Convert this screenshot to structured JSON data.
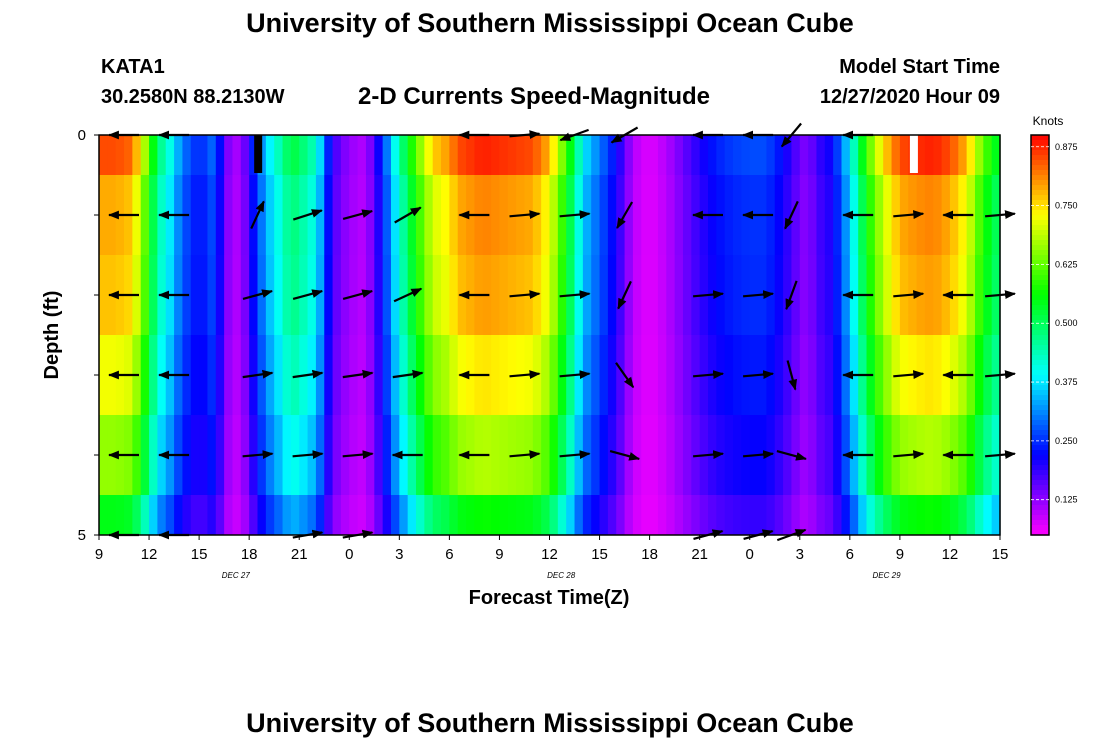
{
  "header": {
    "title": "University of Southern Mississippi Ocean Cube",
    "station": "KATA1",
    "coords": "30.2580N 88.2130W",
    "subtitle": "2-D Currents Speed-Magnitude",
    "model_start_label": "Model Start Time",
    "model_start_value": "12/27/2020 Hour 09"
  },
  "footer": {
    "title": "University of Southern Mississippi Ocean Cube"
  },
  "chart_data": {
    "type": "heatmap",
    "title": "2-D Currents Speed-Magnitude",
    "xlabel": "Forecast Time(Z)",
    "ylabel": "Depth (ft)",
    "x_ticks": [
      "9",
      "12",
      "15",
      "18",
      "21",
      "0",
      "3",
      "6",
      "9",
      "12",
      "15",
      "18",
      "21",
      "0",
      "3",
      "6",
      "9",
      "12",
      "15"
    ],
    "x_hours_range": [
      0,
      54
    ],
    "y_ticks": [
      "0",
      "",
      "",
      "",
      "",
      "5"
    ],
    "ylim": [
      0,
      5
    ],
    "date_labels": [
      {
        "text": "DEC 27",
        "hour": 7
      },
      {
        "text": "DEC 28",
        "hour": 26.5
      },
      {
        "text": "DEC 29",
        "hour": 46
      }
    ],
    "colorbar": {
      "label": "Knots",
      "range": [
        0.05,
        0.9
      ],
      "ticks": [
        "0.875",
        "0.750",
        "0.625",
        "0.500",
        "0.375",
        "0.250",
        "0.125"
      ],
      "tick_values": [
        0.875,
        0.75,
        0.625,
        0.5,
        0.375,
        0.25,
        0.125
      ]
    },
    "speed_profile": {
      "hours": [
        0,
        1,
        2,
        3,
        3.5,
        4,
        5,
        6,
        7,
        7.5,
        8,
        8.5,
        9,
        10,
        11,
        11.5,
        12,
        12.5,
        13,
        13.5,
        14,
        15,
        16,
        17,
        18,
        19,
        20,
        21,
        21.5,
        22,
        23,
        24,
        25,
        26,
        27,
        28,
        28.5,
        29,
        30,
        31,
        32,
        33,
        34,
        35,
        36,
        37,
        38,
        39,
        40,
        41,
        42,
        42.5,
        43,
        44,
        45,
        46,
        47,
        48,
        49,
        50,
        51,
        52,
        53,
        54
      ],
      "values": [
        0.85,
        0.85,
        0.83,
        0.62,
        0.48,
        0.44,
        0.3,
        0.24,
        0.3,
        0.15,
        0.12,
        0.1,
        0.2,
        0.36,
        0.46,
        0.52,
        0.5,
        0.46,
        0.43,
        0.3,
        0.18,
        0.12,
        0.1,
        0.25,
        0.45,
        0.62,
        0.76,
        0.8,
        0.85,
        0.86,
        0.88,
        0.87,
        0.86,
        0.85,
        0.78,
        0.6,
        0.5,
        0.38,
        0.3,
        0.22,
        0.1,
        0.07,
        0.1,
        0.15,
        0.2,
        0.24,
        0.26,
        0.27,
        0.27,
        0.22,
        0.15,
        0.13,
        0.18,
        0.22,
        0.38,
        0.6,
        0.75,
        0.85,
        0.87,
        0.88,
        0.85,
        0.78,
        0.62,
        0.52
      ]
    },
    "depth_factors": [
      1.0,
      0.92,
      0.9,
      0.84,
      0.76,
      0.62
    ],
    "vectors": [
      {
        "hour": 1.5,
        "angles": [
          180,
          180,
          180,
          180,
          180,
          180
        ]
      },
      {
        "hour": 4.5,
        "angles": [
          180,
          180,
          180,
          180,
          180,
          180
        ]
      },
      {
        "hour": 9.5,
        "angles": [
          null,
          65,
          15,
          8,
          5,
          null
        ]
      },
      {
        "hour": 12.5,
        "angles": [
          null,
          18,
          15,
          8,
          5,
          10
        ]
      },
      {
        "hour": 15.5,
        "angles": [
          null,
          15,
          15,
          8,
          5,
          10
        ]
      },
      {
        "hour": 18.5,
        "angles": [
          null,
          30,
          25,
          8,
          180,
          null
        ]
      },
      {
        "hour": 22.5,
        "angles": [
          180,
          180,
          180,
          180,
          180,
          null
        ]
      },
      {
        "hour": 25.5,
        "angles": [
          5,
          5,
          5,
          5,
          5,
          null
        ]
      },
      {
        "hour": 28.5,
        "angles": [
          200,
          5,
          5,
          5,
          5,
          null
        ]
      },
      {
        "hour": 31.5,
        "angles": [
          210,
          240,
          245,
          305,
          345,
          null
        ]
      },
      {
        "hour": 36.5,
        "angles": [
          180,
          180,
          5,
          5,
          5,
          15
        ]
      },
      {
        "hour": 39.5,
        "angles": [
          180,
          180,
          5,
          5,
          5,
          15
        ]
      },
      {
        "hour": 41.5,
        "angles": [
          230,
          245,
          250,
          285,
          345,
          20
        ]
      },
      {
        "hour": 45.5,
        "angles": [
          180,
          180,
          180,
          180,
          180,
          null
        ]
      },
      {
        "hour": 48.5,
        "angles": [
          null,
          5,
          5,
          5,
          5,
          null
        ]
      },
      {
        "hour": 51.5,
        "angles": [
          null,
          180,
          180,
          180,
          180,
          null
        ]
      },
      {
        "hour": 54.0,
        "angles": [
          null,
          5,
          5,
          5,
          5,
          null
        ]
      }
    ]
  }
}
